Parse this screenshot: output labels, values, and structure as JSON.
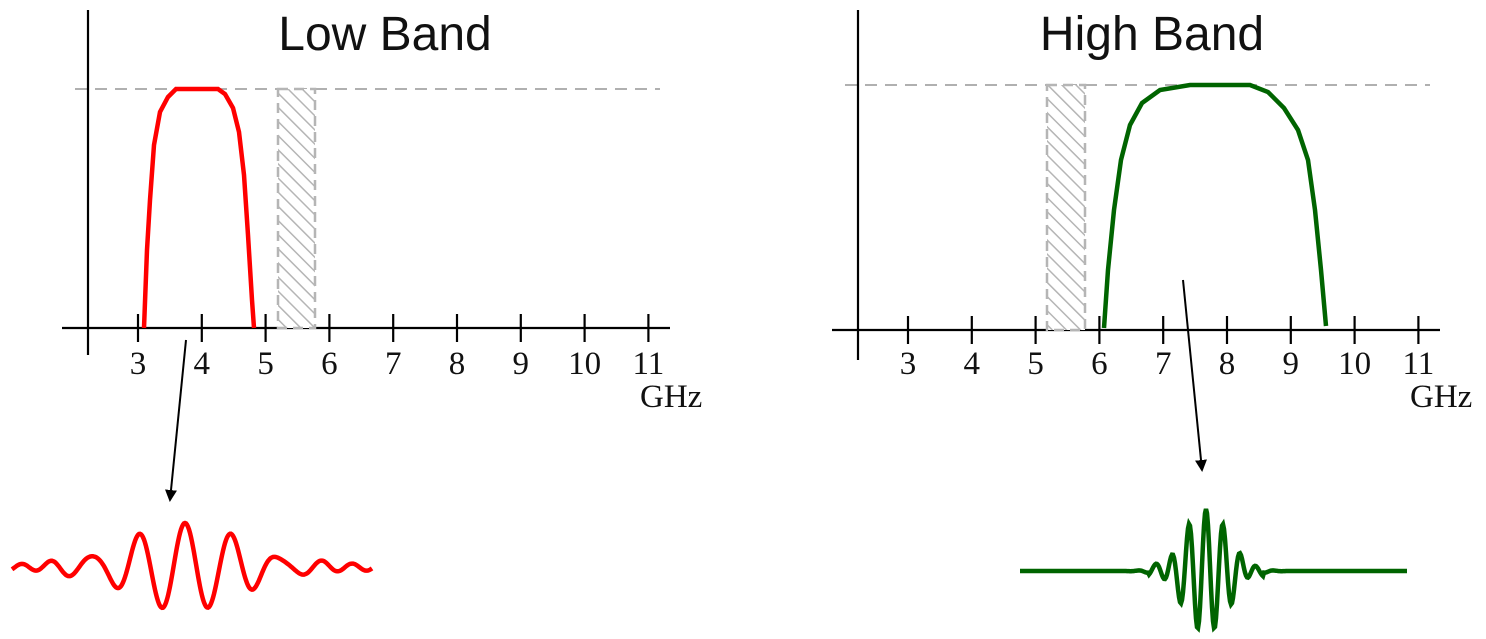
{
  "panels": [
    {
      "title": "Low Band",
      "unit": "GHz",
      "ticks": [
        "3",
        "4",
        "5",
        "6",
        "7",
        "8",
        "9",
        "10",
        "11"
      ],
      "band_color": "#ff0000",
      "band_ghz": [
        3.1,
        4.8
      ],
      "notch_ghz": [
        5.2,
        5.8
      ],
      "pulse": "wide"
    },
    {
      "title": "High Band",
      "unit": "GHz",
      "ticks": [
        "3",
        "4",
        "5",
        "6",
        "7",
        "8",
        "9",
        "10",
        "11"
      ],
      "band_color": "#006400",
      "band_ghz": [
        6.1,
        9.6
      ],
      "notch_ghz": [
        5.2,
        5.8
      ],
      "pulse": "narrow"
    }
  ]
}
